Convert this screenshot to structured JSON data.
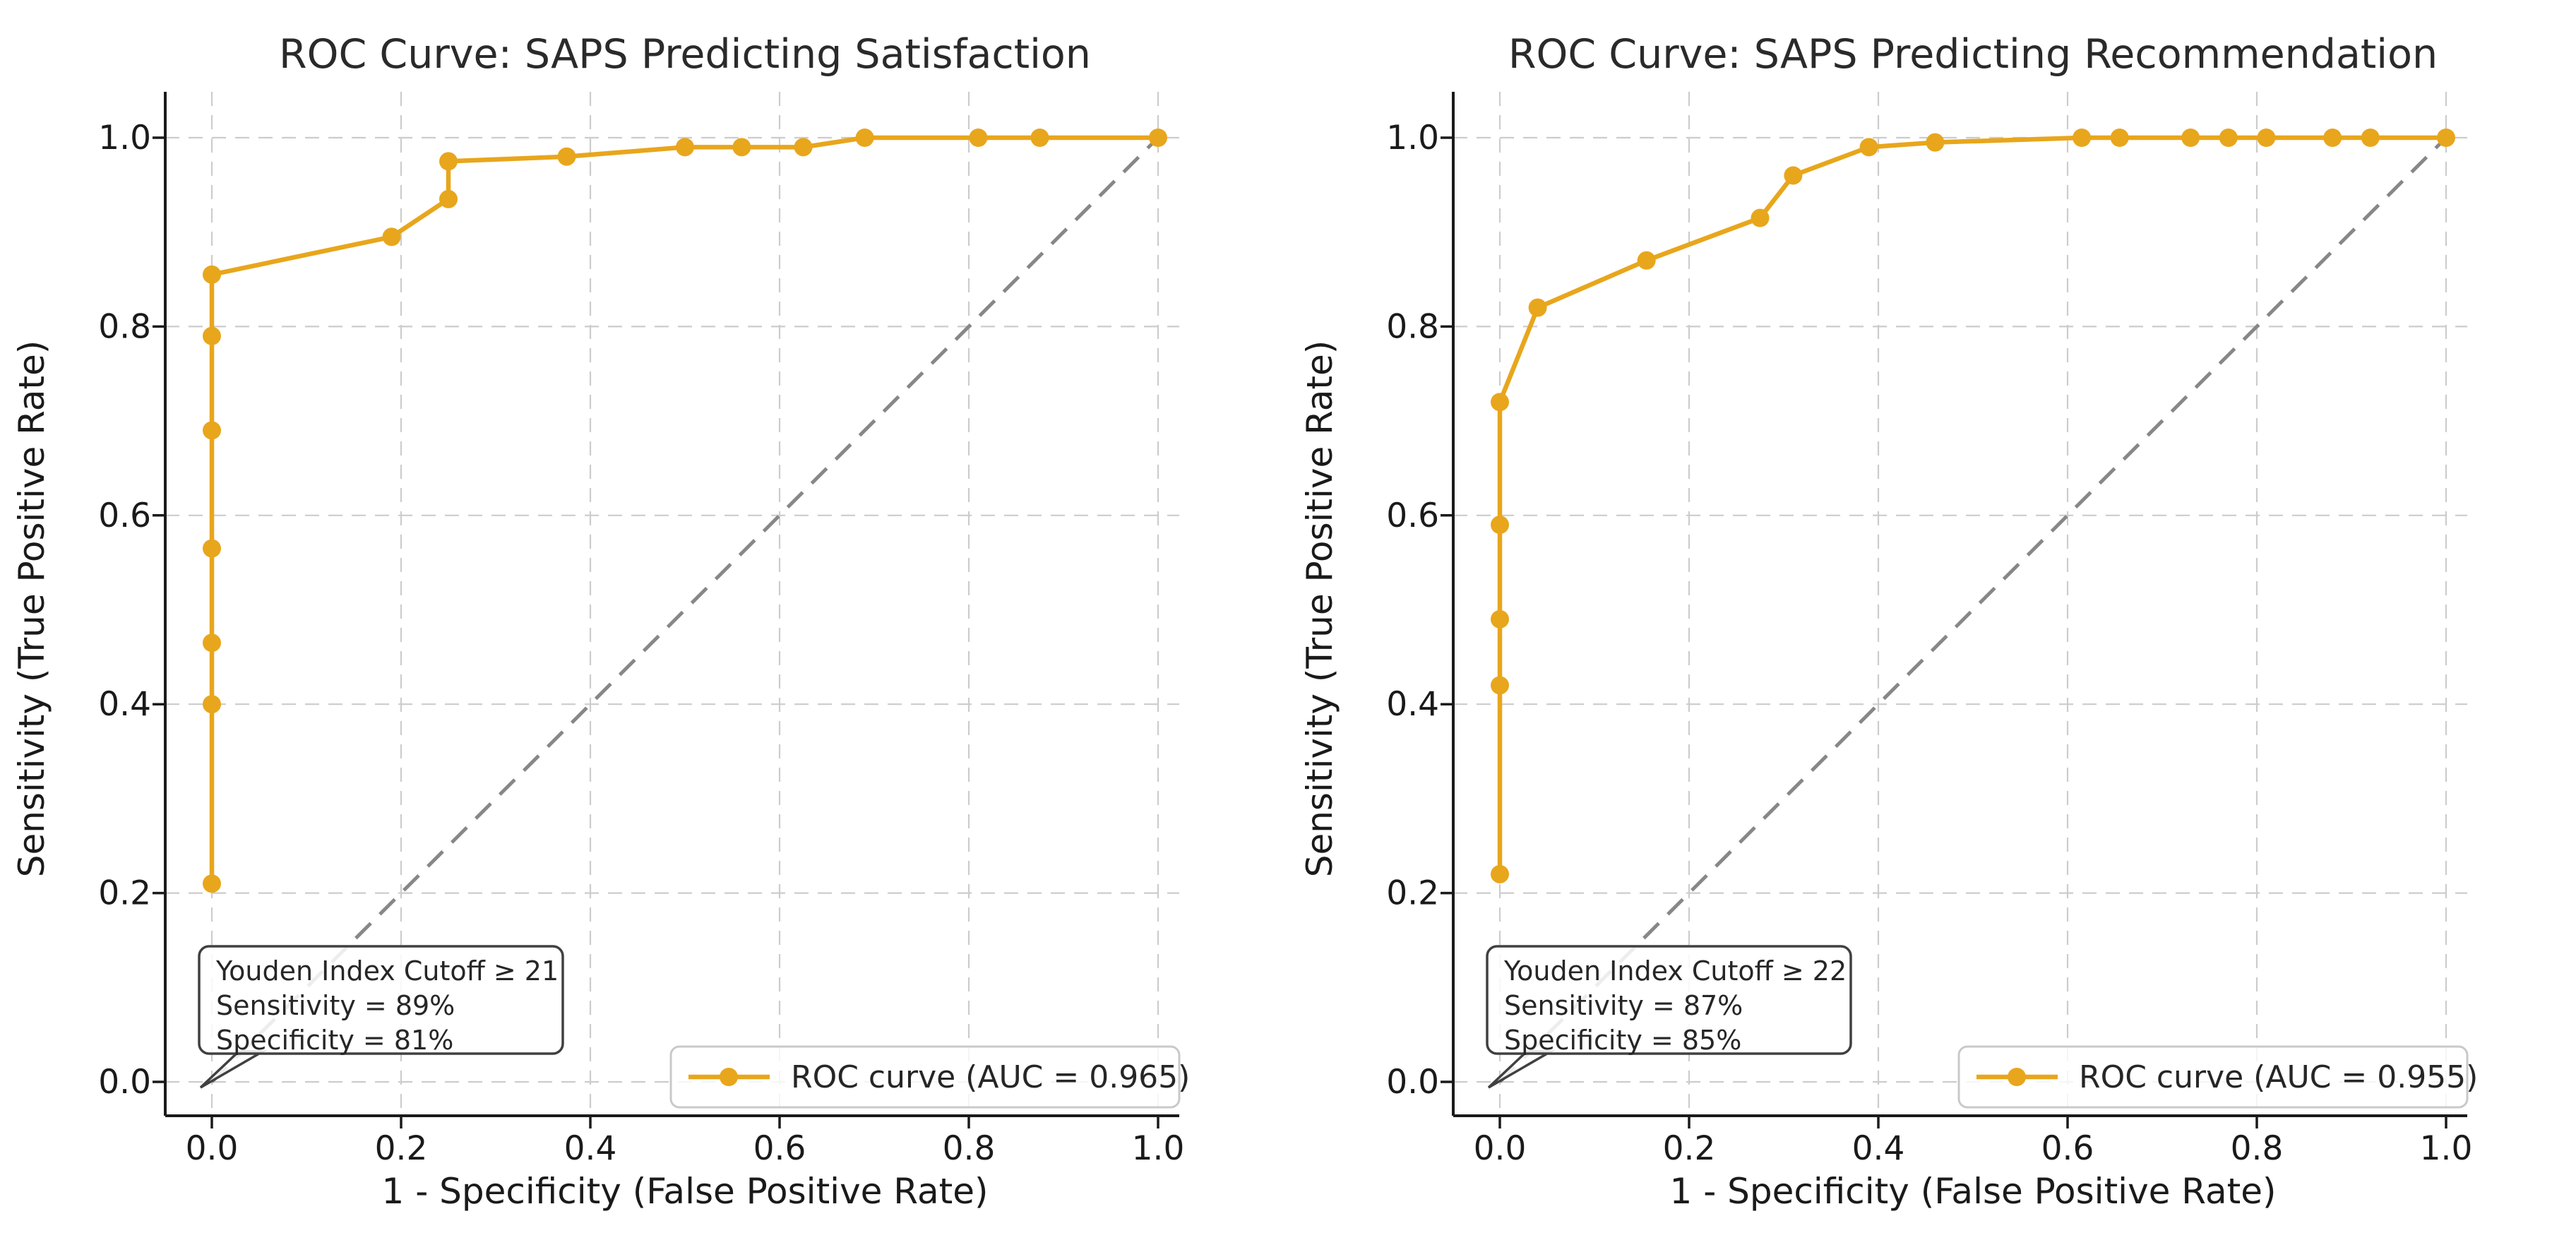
{
  "figure": {
    "background": "#ffffff"
  },
  "colors": {
    "curve": "#E8A61C",
    "diagonal": "#878787",
    "grid": "#cccccc",
    "spine": "#1a1a1a",
    "text": "#1a1a1a",
    "annotation_border": "#404040",
    "legend_border": "#c9c9c9"
  },
  "chart_data": [
    {
      "type": "line",
      "title": "ROC Curve: SAPS Predicting Satisfaction",
      "xlabel": "1 - Specificity (False Positive Rate)",
      "ylabel": "Sensitivity (True Positive Rate)",
      "xlim": [
        -0.05,
        1.05
      ],
      "ylim": [
        -0.04,
        1.05
      ],
      "grid": true,
      "x_ticks": {
        "values": [
          0.0,
          0.2,
          0.4,
          0.6,
          0.8,
          1.0
        ],
        "labels": [
          "0.0",
          "0.2",
          "0.4",
          "0.6",
          "0.8",
          "1.0"
        ]
      },
      "y_ticks": {
        "values": [
          0.0,
          0.2,
          0.4,
          0.6,
          0.8,
          1.0
        ],
        "labels": [
          "0.0",
          "0.2",
          "0.4",
          "0.6",
          "0.8",
          "1.0"
        ]
      },
      "roc_points": [
        [
          0.0,
          0.21
        ],
        [
          0.0,
          0.4
        ],
        [
          0.0,
          0.465
        ],
        [
          0.0,
          0.565
        ],
        [
          0.0,
          0.69
        ],
        [
          0.0,
          0.79
        ],
        [
          0.0,
          0.855
        ],
        [
          0.19,
          0.895
        ],
        [
          0.25,
          0.935
        ],
        [
          0.25,
          0.975
        ],
        [
          0.375,
          0.98
        ],
        [
          0.5,
          0.99
        ],
        [
          0.56,
          0.99
        ],
        [
          0.625,
          0.99
        ],
        [
          0.69,
          1.0
        ],
        [
          0.81,
          1.0
        ],
        [
          0.875,
          1.0
        ],
        [
          1.0,
          1.0
        ]
      ],
      "diagonal_reference": [
        [
          0,
          0
        ],
        [
          1,
          1
        ]
      ],
      "marker": "circle",
      "line_style": "solid",
      "diagonal_style": "dashed",
      "legend_position": "lower right",
      "legend_label": "ROC curve (AUC = 0.965)",
      "auc": 0.965,
      "annotation": {
        "position": "lower left",
        "cutoff": 21,
        "sensitivity_pct": 89,
        "specificity_pct": 81,
        "lines": [
          "Youden Index Cutoff ≥ 21",
          "Sensitivity = 89%",
          "Specificity = 81%"
        ]
      }
    },
    {
      "type": "line",
      "title": "ROC Curve: SAPS Predicting Recommendation",
      "xlabel": "1 - Specificity (False Positive Rate)",
      "ylabel": "Sensitivity (True Positive Rate)",
      "xlim": [
        -0.05,
        1.05
      ],
      "ylim": [
        -0.04,
        1.05
      ],
      "grid": true,
      "x_ticks": {
        "values": [
          0.0,
          0.2,
          0.4,
          0.6,
          0.8,
          1.0
        ],
        "labels": [
          "0.0",
          "0.2",
          "0.4",
          "0.6",
          "0.8",
          "1.0"
        ]
      },
      "y_ticks": {
        "values": [
          0.0,
          0.2,
          0.4,
          0.6,
          0.8,
          1.0
        ],
        "labels": [
          "0.0",
          "0.2",
          "0.4",
          "0.6",
          "0.8",
          "1.0"
        ]
      },
      "roc_points": [
        [
          0.0,
          0.22
        ],
        [
          0.0,
          0.42
        ],
        [
          0.0,
          0.49
        ],
        [
          0.0,
          0.59
        ],
        [
          0.0,
          0.72
        ],
        [
          0.04,
          0.82
        ],
        [
          0.155,
          0.87
        ],
        [
          0.275,
          0.915
        ],
        [
          0.31,
          0.96
        ],
        [
          0.39,
          0.99
        ],
        [
          0.46,
          0.995
        ],
        [
          0.615,
          1.0
        ],
        [
          0.655,
          1.0
        ],
        [
          0.73,
          1.0
        ],
        [
          0.77,
          1.0
        ],
        [
          0.81,
          1.0
        ],
        [
          0.88,
          1.0
        ],
        [
          0.92,
          1.0
        ],
        [
          1.0,
          1.0
        ]
      ],
      "diagonal_reference": [
        [
          0,
          0
        ],
        [
          1,
          1
        ]
      ],
      "marker": "circle",
      "line_style": "solid",
      "diagonal_style": "dashed",
      "legend_position": "lower right",
      "legend_label": "ROC curve (AUC = 0.955)",
      "auc": 0.955,
      "annotation": {
        "position": "lower left",
        "cutoff": 22,
        "sensitivity_pct": 87,
        "specificity_pct": 85,
        "lines": [
          "Youden Index Cutoff ≥ 22",
          "Sensitivity = 87%",
          "Specificity = 85%"
        ]
      }
    }
  ]
}
